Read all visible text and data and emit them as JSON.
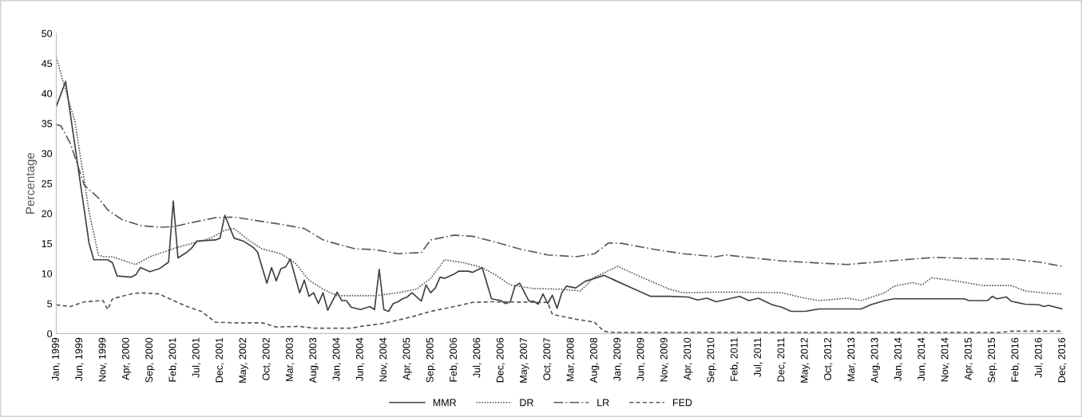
{
  "chart_data": {
    "type": "line",
    "ylabel": "Percentage",
    "legend": "bottom",
    "grid": false,
    "marker": "none",
    "xlim": [
      "1999-01",
      "2016-12"
    ],
    "ylim": [
      0,
      50
    ],
    "yticks": [
      0,
      5,
      10,
      15,
      20,
      25,
      30,
      35,
      40,
      45,
      50
    ],
    "xticks": [
      {
        "value": "1999-01",
        "label": "Jan, 1999"
      },
      {
        "value": "1999-06",
        "label": "Jun, 1999"
      },
      {
        "value": "1999-11",
        "label": "Nov, 1999"
      },
      {
        "value": "2000-04",
        "label": "Apr, 2000"
      },
      {
        "value": "2000-09",
        "label": "Sep, 2000"
      },
      {
        "value": "2001-02",
        "label": "Feb, 2001"
      },
      {
        "value": "2001-07",
        "label": "Jul, 2001"
      },
      {
        "value": "2001-12",
        "label": "Dec, 2001"
      },
      {
        "value": "2002-05",
        "label": "May, 2002"
      },
      {
        "value": "2002-10",
        "label": "Oct, 2002"
      },
      {
        "value": "2003-03",
        "label": "Mar, 2003"
      },
      {
        "value": "2003-08",
        "label": "Aug, 2003"
      },
      {
        "value": "2004-01",
        "label": "Jan, 2004"
      },
      {
        "value": "2004-06",
        "label": "Jun, 2004"
      },
      {
        "value": "2004-11",
        "label": "Nov, 2004"
      },
      {
        "value": "2005-04",
        "label": "Apr, 2005"
      },
      {
        "value": "2005-09",
        "label": "Sep, 2005"
      },
      {
        "value": "2006-02",
        "label": "Feb, 2006"
      },
      {
        "value": "2006-07",
        "label": "Jul, 2006"
      },
      {
        "value": "2006-12",
        "label": "Dec, 2006"
      },
      {
        "value": "2007-05",
        "label": "May, 2007"
      },
      {
        "value": "2007-10",
        "label": "Oct, 2007"
      },
      {
        "value": "2008-03",
        "label": "Mar, 2008"
      },
      {
        "value": "2008-08",
        "label": "Aug, 2008"
      },
      {
        "value": "2009-01",
        "label": "Jan, 2009"
      },
      {
        "value": "2009-06",
        "label": "Jun, 2009"
      },
      {
        "value": "2009-11",
        "label": "Nov, 2009"
      },
      {
        "value": "2010-04",
        "label": "Apr, 2010"
      },
      {
        "value": "2010-09",
        "label": "Sep, 2010"
      },
      {
        "value": "2011-02",
        "label": "Feb, 2011"
      },
      {
        "value": "2011-07",
        "label": "Jul, 2011"
      },
      {
        "value": "2011-12",
        "label": "Dec, 2011"
      },
      {
        "value": "2012-05",
        "label": "May, 2012"
      },
      {
        "value": "2012-10",
        "label": "Oct, 2012"
      },
      {
        "value": "2013-03",
        "label": "Mar, 2013"
      },
      {
        "value": "2013-08",
        "label": "Aug, 2013"
      },
      {
        "value": "2014-01",
        "label": "Jan, 2014"
      },
      {
        "value": "2014-06",
        "label": "Jun, 2014"
      },
      {
        "value": "2014-11",
        "label": "Nov, 2014"
      },
      {
        "value": "2015-04",
        "label": "Apr, 2015"
      },
      {
        "value": "2015-09",
        "label": "Sep, 2015"
      },
      {
        "value": "2016-02",
        "label": "Feb, 2016"
      },
      {
        "value": "2016-07",
        "label": "Jul, 2016"
      },
      {
        "value": "2016-12",
        "label": "Dec, 2016"
      }
    ],
    "series": [
      {
        "name": "MMR",
        "color": "#404040",
        "line_style": "solid",
        "x": [
          "1999-01",
          "1999-03",
          "1999-08",
          "1999-09",
          "1999-12",
          "2000-01",
          "2000-02",
          "2000-05",
          "2000-06",
          "2000-07",
          "2000-09",
          "2000-11",
          "2001-01",
          "2001-02",
          "2001-03",
          "2001-05",
          "2001-06",
          "2001-07",
          "2001-09",
          "2001-11",
          "2001-12",
          "2002-01",
          "2002-03",
          "2002-05",
          "2002-07",
          "2002-08",
          "2002-10",
          "2002-11",
          "2002-12",
          "2003-01",
          "2003-02",
          "2003-03",
          "2003-05",
          "2003-06",
          "2003-07",
          "2003-08",
          "2003-09",
          "2003-10",
          "2003-11",
          "2004-01",
          "2004-02",
          "2004-03",
          "2004-04",
          "2004-06",
          "2004-08",
          "2004-09",
          "2004-10",
          "2004-11",
          "2004-12",
          "2005-01",
          "2005-02",
          "2005-03",
          "2005-04",
          "2005-05",
          "2005-07",
          "2005-08",
          "2005-09",
          "2005-10",
          "2005-11",
          "2005-12",
          "2006-02",
          "2006-03",
          "2006-05",
          "2006-06",
          "2006-08",
          "2006-10",
          "2006-12",
          "2007-01",
          "2007-02",
          "2007-03",
          "2007-04",
          "2007-06",
          "2007-07",
          "2007-08",
          "2007-09",
          "2007-10",
          "2007-11",
          "2007-12",
          "2008-01",
          "2008-02",
          "2008-04",
          "2008-06",
          "2008-10",
          "2008-12",
          "2009-04",
          "2009-08",
          "2009-12",
          "2010-04",
          "2010-06",
          "2010-08",
          "2010-10",
          "2011-03",
          "2011-05",
          "2011-07",
          "2011-10",
          "2011-12",
          "2012-02",
          "2012-05",
          "2012-08",
          "2013-05",
          "2013-07",
          "2013-10",
          "2013-12",
          "2014-04",
          "2015-03",
          "2015-04",
          "2015-08",
          "2015-09",
          "2015-10",
          "2015-12",
          "2016-01",
          "2016-04",
          "2016-07",
          "2016-08",
          "2016-09",
          "2016-12"
        ],
        "values": [
          37.8,
          42,
          15.1,
          12.3,
          12.3,
          11.8,
          9.6,
          9.4,
          9.8,
          11,
          10.3,
          10.8,
          11.9,
          22.1,
          12.6,
          13.6,
          14.3,
          15.4,
          15.5,
          15.6,
          15.9,
          19.7,
          15.9,
          15.4,
          14.4,
          13.6,
          8.4,
          11,
          8.8,
          10.8,
          11.1,
          12.4,
          6.8,
          8.9,
          6.2,
          6.8,
          5,
          6.8,
          3.9,
          6.9,
          5.5,
          5.5,
          4.4,
          4,
          4.5,
          4,
          10.7,
          4,
          3.7,
          5,
          5.3,
          5.8,
          6.1,
          6.8,
          5.4,
          8.1,
          6.8,
          7.6,
          9.4,
          9.2,
          9.9,
          10.4,
          10.4,
          10.2,
          11,
          5.8,
          5.5,
          5,
          5.3,
          7.9,
          8.4,
          5.4,
          5.4,
          4.9,
          6.6,
          5,
          6.4,
          4.2,
          6.8,
          7.9,
          7.6,
          8.7,
          9.7,
          9,
          7.6,
          6.2,
          6.2,
          6.1,
          5.6,
          5.9,
          5.3,
          6.2,
          5.5,
          5.9,
          4.8,
          4.4,
          3.7,
          3.7,
          4.1,
          4.1,
          4.8,
          5.5,
          5.8,
          5.8,
          5.8,
          5.5,
          5.5,
          6.2,
          5.8,
          6.1,
          5.4,
          4.9,
          4.8,
          4.5,
          4.7,
          4.1
        ]
      },
      {
        "name": "DR",
        "color": "#595959",
        "line_style": "dotted",
        "x": [
          "1999-01",
          "1999-03",
          "1999-05",
          "1999-06",
          "1999-07",
          "1999-08",
          "1999-10",
          "1999-11",
          "2000-01",
          "2000-04",
          "2000-06",
          "2000-09",
          "2000-12",
          "2001-03",
          "2001-06",
          "2001-10",
          "2002-01",
          "2002-03",
          "2002-06",
          "2002-09",
          "2003-01",
          "2003-04",
          "2003-07",
          "2003-10",
          "2004-01",
          "2004-04",
          "2004-09",
          "2005-02",
          "2005-06",
          "2005-09",
          "2005-12",
          "2006-04",
          "2006-08",
          "2006-11",
          "2007-02",
          "2007-07",
          "2008-01",
          "2008-05",
          "2008-08",
          "2009-01",
          "2009-06",
          "2009-12",
          "2010-03",
          "2010-10",
          "2011-02",
          "2011-12",
          "2012-05",
          "2012-08",
          "2013-02",
          "2013-05",
          "2013-10",
          "2013-12",
          "2014-04",
          "2014-06",
          "2014-08",
          "2015-01",
          "2015-07",
          "2016-01",
          "2016-04",
          "2016-09",
          "2016-12"
        ],
        "values": [
          46,
          40.5,
          35.3,
          30.2,
          25.5,
          20.3,
          13.1,
          12.8,
          12.8,
          12,
          11.5,
          12.8,
          13.6,
          14.4,
          15,
          15.9,
          17.2,
          17.5,
          15.6,
          14.1,
          13.3,
          11.8,
          8.9,
          7.4,
          6.3,
          6.3,
          6.3,
          6.8,
          7.4,
          9.2,
          12.3,
          11.8,
          11,
          9.7,
          8.1,
          7.5,
          7.4,
          7.1,
          9.4,
          11.2,
          9.4,
          7.4,
          6.8,
          6.9,
          6.9,
          6.8,
          5.9,
          5.5,
          5.9,
          5.5,
          6.8,
          7.9,
          8.5,
          8.1,
          9.3,
          8.8,
          8,
          8,
          7.1,
          6.7,
          6.6
        ]
      },
      {
        "name": "LR",
        "color": "#595959",
        "line_style": "dashdot",
        "x": [
          "1999-01",
          "1999-02",
          "1999-04",
          "1999-07",
          "1999-10",
          "1999-12",
          "2000-03",
          "2000-07",
          "2000-11",
          "2001-02",
          "2001-06",
          "2001-11",
          "2002-03",
          "2002-08",
          "2003-01",
          "2003-06",
          "2003-10",
          "2004-02",
          "2004-05",
          "2004-09",
          "2005-02",
          "2005-07",
          "2005-09",
          "2006-02",
          "2006-06",
          "2006-11",
          "2007-04",
          "2007-10",
          "2008-04",
          "2008-08",
          "2008-11",
          "2009-02",
          "2009-09",
          "2010-03",
          "2010-10",
          "2010-12",
          "2011-12",
          "2013-02",
          "2014-02",
          "2014-09",
          "2015-04",
          "2016-01",
          "2016-07",
          "2016-12"
        ],
        "values": [
          34.8,
          34.6,
          31.7,
          24.7,
          22.6,
          20.6,
          19,
          18,
          17.7,
          17.8,
          18.5,
          19.3,
          19.4,
          18.8,
          18.2,
          17.5,
          15.6,
          14.7,
          14.1,
          14,
          13.3,
          13.5,
          15.6,
          16.4,
          16.2,
          15.2,
          14.1,
          13.1,
          12.8,
          13.3,
          15.1,
          15,
          14,
          13.3,
          12.8,
          13.1,
          12.1,
          11.5,
          12.3,
          12.7,
          12.5,
          12.4,
          11.9,
          11.2
        ]
      },
      {
        "name": "FED",
        "color": "#595959",
        "line_style": "dashed",
        "x": [
          "1999-01",
          "1999-04",
          "1999-07",
          "1999-11",
          "1999-12",
          "2000-01",
          "2000-05",
          "2000-07",
          "2000-11",
          "2001-02",
          "2001-05",
          "2001-08",
          "2001-11",
          "2002-03",
          "2002-09",
          "2002-12",
          "2003-05",
          "2003-08",
          "2004-04",
          "2004-06",
          "2004-08",
          "2004-11",
          "2005-05",
          "2005-09",
          "2006-02",
          "2006-06",
          "2006-10",
          "2007-10",
          "2007-11",
          "2008-04",
          "2008-08",
          "2008-10",
          "2008-12",
          "2015-11",
          "2016-01",
          "2016-12"
        ],
        "values": [
          4.8,
          4.5,
          5.3,
          5.5,
          4,
          5.8,
          6.6,
          6.8,
          6.6,
          5.5,
          4.5,
          3.7,
          1.9,
          1.8,
          1.8,
          1.1,
          1.2,
          0.9,
          0.9,
          1.2,
          1.4,
          1.7,
          2.8,
          3.7,
          4.5,
          5.2,
          5.3,
          5.2,
          3.2,
          2.4,
          1.9,
          0.4,
          0.2,
          0.2,
          0.4,
          0.4
        ]
      }
    ]
  }
}
